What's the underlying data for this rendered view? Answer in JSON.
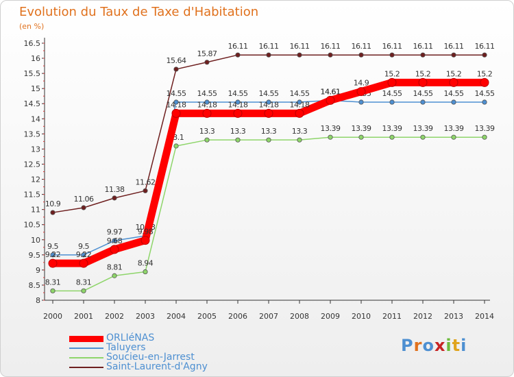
{
  "title": "Evolution du Taux de Taxe d'Habitation",
  "subtitle": "(en %)",
  "brand": {
    "letters": [
      "P",
      "r",
      "o",
      "x",
      "i",
      "t",
      "i"
    ],
    "colors": [
      "#4d8fd1",
      "#e0711d",
      "#4d8fd1",
      "#c62424",
      "#6dbb3c",
      "#e0a41d",
      "#4d8fd1"
    ]
  },
  "chart_data": {
    "type": "line",
    "x": [
      2000,
      2001,
      2002,
      2003,
      2004,
      2005,
      2006,
      2007,
      2008,
      2009,
      2010,
      2011,
      2012,
      2013,
      2014
    ],
    "x_labels": [
      "2000",
      "2001",
      "2002",
      "2003",
      "2004",
      "2005",
      "2006",
      "2007",
      "2008",
      "2009",
      "2010",
      "2011",
      "2012",
      "2013",
      "2014"
    ],
    "ylim": [
      8,
      16.5
    ],
    "y_ticks": [
      8,
      8.5,
      9,
      9.5,
      10,
      10.5,
      11,
      11.5,
      12,
      12.5,
      13,
      13.5,
      14,
      14.5,
      15,
      15.5,
      16,
      16.5
    ],
    "y_tick_labels": [
      "8",
      "8.5",
      "9",
      "9.5",
      "10",
      "10.5",
      "11",
      "11.5",
      "12",
      "12.5",
      "13",
      "13.5",
      "14",
      "14.5",
      "15",
      "15.5",
      "16",
      "16.5"
    ],
    "grid": false,
    "legend_position": "bottom-left",
    "series": [
      {
        "name": "Saint-Laurent-d'Agny",
        "color": "#6e1f1f",
        "values": [
          10.9,
          11.06,
          11.38,
          11.62,
          15.64,
          15.87,
          16.11,
          16.11,
          16.11,
          16.11,
          16.11,
          16.11,
          16.11,
          16.11,
          16.11
        ],
        "labels": [
          "10.9",
          "11.06",
          "11.38",
          "11.62",
          "15.64",
          "15.87",
          "16.11",
          "16.11",
          "16.11",
          "16.11",
          "16.11",
          "16.11",
          "16.11",
          "16.11",
          "16.11"
        ]
      },
      {
        "name": "Taluyers",
        "color": "#4d8fd1",
        "values": [
          9.5,
          9.5,
          9.97,
          10.13,
          14.55,
          14.55,
          14.55,
          14.55,
          14.55,
          14.61,
          14.55,
          14.55,
          14.55,
          14.55,
          14.55
        ],
        "labels": [
          "9.5",
          "9.5",
          "9.97",
          "10.13",
          "14.55",
          "14.55",
          "14.55",
          "14.55",
          "14.55",
          "14.61",
          "14.55",
          "14.55",
          "14.55",
          "14.55",
          "14.55"
        ]
      },
      {
        "name": "Soucieu-en-Jarrest",
        "color": "#8ed56a",
        "values": [
          8.31,
          8.31,
          8.81,
          8.94,
          13.1,
          13.3,
          13.3,
          13.3,
          13.3,
          13.39,
          13.39,
          13.39,
          13.39,
          13.39,
          13.39
        ],
        "labels": [
          "8.31",
          "8.31",
          "8.81",
          "8.94",
          "13.1",
          "13.3",
          "13.3",
          "13.3",
          "13.3",
          "13.39",
          "13.39",
          "13.39",
          "13.39",
          "13.39",
          "13.39"
        ]
      },
      {
        "name": "ORLIéNAS",
        "color": "#ff0000",
        "values": [
          9.22,
          9.22,
          9.68,
          9.98,
          14.18,
          14.18,
          14.18,
          14.18,
          14.18,
          14.61,
          14.9,
          15.2,
          15.2,
          15.2,
          15.2
        ],
        "labels": [
          "9.22",
          "9.22",
          "9.68",
          "9.98",
          "14.18",
          "14.18",
          "14.18",
          "14.18",
          "14.18",
          "14.61",
          "14.9",
          "15.2",
          "15.2",
          "15.2",
          "15.2"
        ]
      }
    ],
    "legend_order": [
      "ORLIéNAS",
      "Taluyers",
      "Soucieu-en-Jarrest",
      "Saint-Laurent-d'Agny"
    ]
  }
}
